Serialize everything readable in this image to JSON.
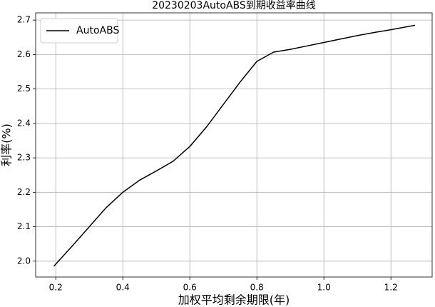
{
  "chart_data": {
    "type": "line",
    "title": "20230203AutoABS到期收益率曲线",
    "x_label": "加权平均剩余期限(年)",
    "y_label": "利率(%)",
    "x": [
      0.194,
      0.25,
      0.3,
      0.35,
      0.4,
      0.45,
      0.5,
      0.55,
      0.6,
      0.65,
      0.7,
      0.75,
      0.8,
      0.85,
      0.9,
      0.95,
      1.0,
      1.05,
      1.1,
      1.15,
      1.2,
      1.272
    ],
    "series": [
      {
        "name": "AutoABS",
        "color": "#000000",
        "values": [
          1.985,
          2.045,
          2.1,
          2.155,
          2.2,
          2.235,
          2.262,
          2.29,
          2.333,
          2.39,
          2.455,
          2.52,
          2.58,
          2.607,
          2.615,
          2.625,
          2.635,
          2.645,
          2.655,
          2.664,
          2.672,
          2.685
        ]
      }
    ],
    "xlim": [
      0.14,
      1.323
    ],
    "ylim": [
      1.954,
      2.721
    ],
    "xticks": [
      0.2,
      0.4,
      0.6,
      0.8,
      {
        "value": 1,
        "label": "1.0"
      },
      1.2
    ],
    "yticks": [
      {
        "value": 2,
        "label": "2.0"
      },
      2.1,
      2.2,
      2.3,
      2.4,
      2.5,
      2.6,
      2.7
    ],
    "grid": true,
    "legend": "upper left"
  }
}
